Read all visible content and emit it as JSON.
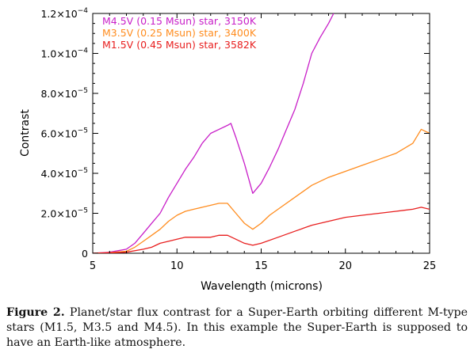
{
  "chart_data": {
    "type": "line",
    "xlabel": "Wavelength (microns)",
    "ylabel": "Contrast",
    "xlim": [
      5,
      25
    ],
    "ylim": [
      0,
      0.00012
    ],
    "x_ticks": [
      5,
      10,
      15,
      20,
      25
    ],
    "x_tick_labels": [
      "5",
      "10",
      "15",
      "20",
      "25"
    ],
    "y_ticks": [
      0,
      2e-05,
      4e-05,
      6e-05,
      8e-05,
      0.0001,
      0.00012
    ],
    "y_tick_labels": [
      {
        "mant": "0",
        "exp": ""
      },
      {
        "mant": "2.0×10",
        "exp": "−5"
      },
      {
        "mant": "4.0×10",
        "exp": "−5"
      },
      {
        "mant": "6.0×10",
        "exp": "−5"
      },
      {
        "mant": "8.0×10",
        "exp": "−5"
      },
      {
        "mant": "1.0×10",
        "exp": "−4"
      },
      {
        "mant": "1.2×10",
        "exp": "−4"
      }
    ],
    "legend_position": "top-left",
    "grid": false,
    "series": [
      {
        "name": "M4.5V (0.15 Msun) star, 3150K",
        "color": "#c81ec8",
        "x": [
          5,
          6,
          7,
          7.5,
          8,
          8.5,
          9,
          9.5,
          10,
          10.5,
          11,
          11.5,
          12,
          12.5,
          13,
          13.2,
          13.5,
          14,
          14.5,
          15,
          15.5,
          16,
          16.5,
          17,
          17.5,
          18,
          18.5,
          19,
          19.3
        ],
        "y": [
          0,
          5e-07,
          2e-06,
          5e-06,
          1e-05,
          1.5e-05,
          2e-05,
          2.8e-05,
          3.5e-05,
          4.2e-05,
          4.8e-05,
          5.5e-05,
          6e-05,
          6.2e-05,
          6.4e-05,
          6.5e-05,
          5.8e-05,
          4.5e-05,
          3e-05,
          3.5e-05,
          4.3e-05,
          5.2e-05,
          6.2e-05,
          7.2e-05,
          8.5e-05,
          0.0001,
          0.000108,
          0.000115,
          0.00012
        ]
      },
      {
        "name": "M3.5V (0.25 Msun) star, 3400K",
        "color": "#ff8c1e",
        "x": [
          5,
          6,
          7,
          7.5,
          8,
          8.5,
          9,
          9.5,
          10,
          10.5,
          11,
          11.5,
          12,
          12.5,
          13,
          13.5,
          14,
          14.5,
          15,
          15.5,
          16,
          17,
          18,
          19,
          20,
          21,
          22,
          23,
          24,
          24.5,
          25
        ],
        "y": [
          0,
          3e-07,
          1e-06,
          3e-06,
          6e-06,
          9e-06,
          1.2e-05,
          1.6e-05,
          1.9e-05,
          2.1e-05,
          2.2e-05,
          2.3e-05,
          2.4e-05,
          2.5e-05,
          2.5e-05,
          2e-05,
          1.5e-05,
          1.2e-05,
          1.5e-05,
          1.9e-05,
          2.2e-05,
          2.8e-05,
          3.4e-05,
          3.8e-05,
          4.1e-05,
          4.4e-05,
          4.7e-05,
          5e-05,
          5.5e-05,
          6.2e-05,
          6e-05
        ]
      },
      {
        "name": "M1.5V (0.45 Msun) star, 3582K",
        "color": "#e81e1e",
        "x": [
          5,
          6,
          7,
          8,
          8.5,
          9,
          9.5,
          10,
          10.5,
          11,
          11.5,
          12,
          12.5,
          13,
          13.5,
          14,
          14.5,
          15,
          16,
          17,
          18,
          19,
          20,
          21,
          22,
          23,
          24,
          24.5,
          25
        ],
        "y": [
          0,
          2e-07,
          5e-07,
          2e-06,
          3e-06,
          5e-06,
          6e-06,
          7e-06,
          8e-06,
          8e-06,
          8e-06,
          8e-06,
          9e-06,
          9e-06,
          7e-06,
          5e-06,
          4e-06,
          5e-06,
          8e-06,
          1.1e-05,
          1.4e-05,
          1.6e-05,
          1.8e-05,
          1.9e-05,
          2e-05,
          2.1e-05,
          2.2e-05,
          2.3e-05,
          2.2e-05
        ]
      }
    ]
  },
  "caption": {
    "figure_label": "Figure 2.",
    "text": "Planet/star flux contrast for a Super-Earth orbiting different M-type stars (M1.5, M3.5 and M4.5). In this example the Super-Earth is supposed to have an Earth-like atmosphere."
  }
}
